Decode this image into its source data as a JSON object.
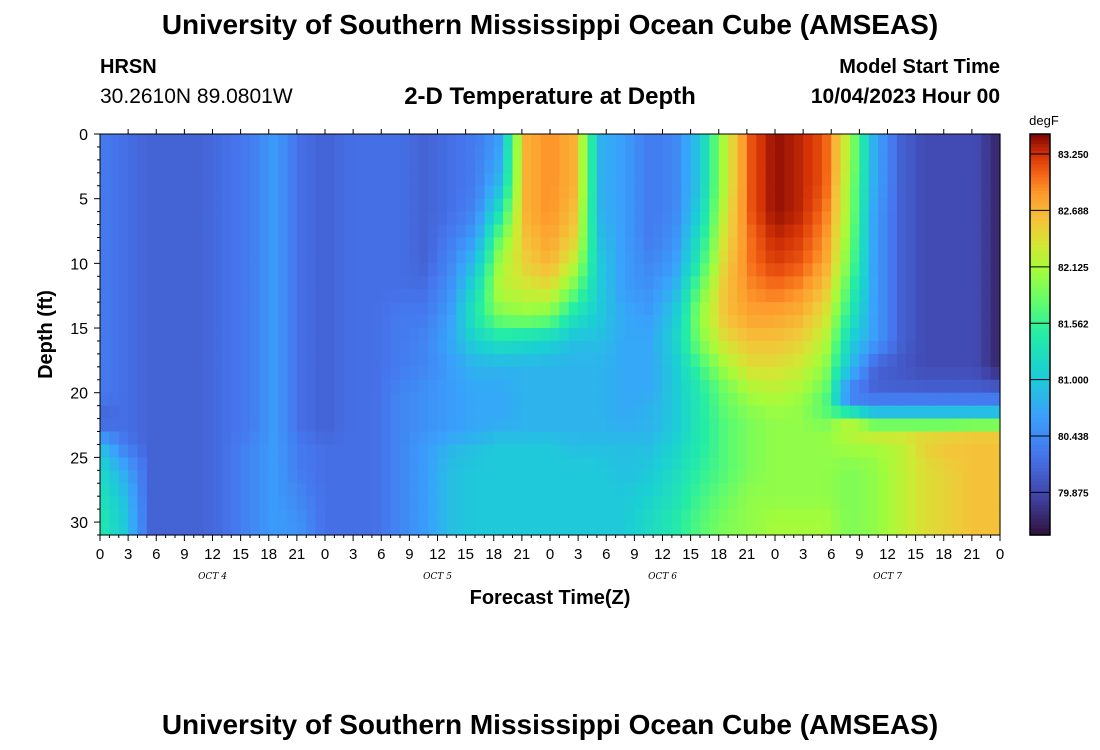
{
  "header": {
    "title": "University of Southern Mississippi Ocean Cube (AMSEAS)",
    "station": "HRSN",
    "coordinates": "30.2610N  89.0801W",
    "subtitle": "2-D Temperature at Depth",
    "start_label": "Model Start Time",
    "start_value": "10/04/2023 Hour 00"
  },
  "footer": {
    "title": "University of Southern Mississippi Ocean Cube (AMSEAS)"
  },
  "chart_data": {
    "type": "heatmap",
    "xlabel": "Forecast Time(Z)",
    "ylabel": "Depth (ft)",
    "x_tick_labels": [
      "0",
      "3",
      "6",
      "9",
      "12",
      "15",
      "18",
      "21",
      "0",
      "3",
      "6",
      "9",
      "12",
      "15",
      "18",
      "21",
      "0",
      "3",
      "6",
      "9",
      "12",
      "15",
      "18",
      "21",
      "0",
      "3",
      "6",
      "9",
      "12",
      "15",
      "18",
      "21",
      "0"
    ],
    "x_hours_range": [
      0,
      96
    ],
    "day_labels": [
      {
        "label": "OCT  4",
        "hour": 12
      },
      {
        "label": "OCT  5",
        "hour": 36
      },
      {
        "label": "OCT  6",
        "hour": 60
      },
      {
        "label": "OCT  7",
        "hour": 84
      }
    ],
    "y_ticks": [
      0,
      5,
      10,
      15,
      20,
      25,
      30
    ],
    "ylim": [
      0,
      31
    ],
    "y_inverted": true,
    "colorbar": {
      "unit": "degF",
      "tick_labels": [
        "83.250",
        "82.688",
        "82.125",
        "81.562",
        "81.000",
        "80.438",
        "79.875"
      ],
      "range": [
        79.45,
        83.45
      ]
    },
    "hours": [
      0,
      3,
      6,
      9,
      12,
      15,
      18,
      21,
      24,
      27,
      30,
      33,
      36,
      39,
      42,
      45,
      48,
      51,
      54,
      57,
      60,
      63,
      66,
      69,
      72,
      75,
      78,
      81,
      84,
      87,
      90,
      93,
      96
    ],
    "depths": [
      0,
      2,
      4,
      6,
      8,
      10,
      12,
      14,
      16,
      18,
      20,
      21,
      22,
      23,
      24,
      26,
      28,
      30,
      31
    ],
    "values": [
      [
        80.3,
        80.2,
        80.1,
        80.1,
        80.1,
        80.2,
        80.3,
        80.6,
        80.2,
        80.1,
        80.2,
        80.2,
        80.2,
        80.1,
        80.2,
        80.3,
        80.6,
        82.7,
        82.9,
        82.7,
        80.8,
        80.6,
        80.3,
        80.4,
        81.0,
        82.2,
        83.1,
        83.4,
        83.3,
        83.1,
        82.1,
        80.7,
        80.1,
        79.9,
        79.9,
        79.9,
        79.6
      ],
      [
        80.3,
        80.2,
        80.1,
        80.1,
        80.1,
        80.2,
        80.3,
        80.6,
        80.2,
        80.1,
        80.2,
        80.2,
        80.2,
        80.1,
        80.2,
        80.3,
        80.7,
        82.7,
        82.9,
        82.7,
        80.8,
        80.6,
        80.3,
        80.4,
        81.0,
        82.2,
        83.1,
        83.4,
        83.3,
        83.1,
        82.1,
        80.7,
        80.1,
        79.9,
        79.9,
        79.9,
        79.6
      ],
      [
        80.3,
        80.2,
        80.1,
        80.1,
        80.1,
        80.2,
        80.3,
        80.6,
        80.2,
        80.1,
        80.2,
        80.2,
        80.2,
        80.1,
        80.2,
        80.3,
        80.9,
        82.7,
        82.9,
        82.7,
        80.8,
        80.6,
        80.3,
        80.4,
        81.0,
        82.2,
        83.1,
        83.4,
        83.3,
        83.1,
        82.0,
        80.7,
        80.1,
        79.9,
        79.9,
        79.9,
        79.6
      ],
      [
        80.3,
        80.2,
        80.1,
        80.1,
        80.1,
        80.2,
        80.3,
        80.6,
        80.2,
        80.1,
        80.2,
        80.2,
        80.2,
        80.1,
        80.2,
        80.4,
        81.3,
        82.7,
        82.9,
        82.6,
        80.8,
        80.6,
        80.3,
        80.4,
        81.1,
        82.3,
        83.1,
        83.4,
        83.3,
        83.0,
        82.0,
        80.6,
        80.1,
        79.9,
        79.9,
        79.9,
        79.6
      ],
      [
        80.3,
        80.2,
        80.1,
        80.1,
        80.1,
        80.2,
        80.3,
        80.6,
        80.2,
        80.1,
        80.2,
        80.2,
        80.2,
        80.1,
        80.3,
        80.6,
        81.8,
        82.6,
        82.8,
        82.5,
        80.9,
        80.6,
        80.3,
        80.5,
        81.3,
        82.4,
        83.0,
        83.3,
        83.2,
        82.9,
        81.9,
        80.6,
        80.1,
        79.9,
        79.9,
        79.9,
        79.6
      ],
      [
        80.3,
        80.2,
        80.1,
        80.1,
        80.1,
        80.2,
        80.3,
        80.6,
        80.2,
        80.1,
        80.2,
        80.2,
        80.2,
        80.1,
        80.4,
        80.9,
        82.1,
        82.5,
        82.7,
        82.2,
        81.0,
        80.6,
        80.4,
        80.6,
        81.5,
        82.5,
        83.0,
        83.2,
        83.1,
        82.8,
        81.8,
        80.6,
        80.1,
        79.9,
        79.9,
        79.9,
        79.6
      ],
      [
        80.3,
        80.2,
        80.1,
        80.1,
        80.1,
        80.2,
        80.3,
        80.6,
        80.2,
        80.1,
        80.2,
        80.2,
        80.2,
        80.2,
        80.5,
        81.2,
        82.2,
        82.3,
        82.4,
        81.8,
        81.0,
        80.6,
        80.5,
        80.8,
        81.8,
        82.6,
        82.9,
        83.0,
        82.9,
        82.6,
        81.6,
        80.6,
        80.1,
        79.9,
        79.9,
        79.9,
        79.6
      ],
      [
        80.3,
        80.2,
        80.1,
        80.1,
        80.1,
        80.2,
        80.3,
        80.6,
        80.2,
        80.1,
        80.2,
        80.2,
        80.3,
        80.3,
        80.6,
        81.4,
        81.9,
        82.0,
        81.9,
        81.3,
        81.0,
        80.7,
        80.6,
        81.0,
        82.0,
        82.6,
        82.8,
        82.8,
        82.7,
        82.4,
        81.4,
        80.6,
        80.1,
        79.9,
        79.9,
        79.9,
        79.6
      ],
      [
        80.3,
        80.2,
        80.1,
        80.1,
        80.1,
        80.2,
        80.3,
        80.6,
        80.2,
        80.1,
        80.2,
        80.2,
        80.3,
        80.4,
        80.7,
        81.1,
        81.3,
        81.2,
        81.1,
        80.9,
        80.9,
        80.7,
        80.7,
        81.1,
        81.9,
        82.4,
        82.6,
        82.6,
        82.5,
        82.2,
        81.1,
        80.6,
        80.1,
        79.9,
        79.9,
        79.9,
        79.6
      ],
      [
        80.3,
        80.2,
        80.1,
        80.1,
        80.1,
        80.2,
        80.3,
        80.6,
        80.2,
        80.1,
        80.2,
        80.2,
        80.3,
        80.4,
        80.6,
        80.8,
        80.8,
        80.8,
        80.8,
        80.8,
        80.8,
        80.7,
        80.7,
        81.0,
        81.6,
        82.1,
        82.4,
        82.4,
        82.3,
        82.0,
        80.9,
        80.1,
        80.0,
        79.9,
        79.9,
        79.9,
        79.6
      ],
      [
        80.3,
        80.2,
        80.1,
        80.1,
        80.1,
        80.2,
        80.3,
        80.6,
        80.2,
        80.1,
        80.2,
        80.2,
        80.4,
        80.5,
        80.6,
        80.7,
        80.7,
        80.8,
        80.8,
        80.8,
        80.8,
        80.7,
        80.7,
        81.0,
        81.4,
        81.8,
        82.1,
        82.2,
        82.1,
        81.8,
        80.3,
        80.1,
        80.1,
        80.1,
        80.1,
        80.1,
        80.1
      ],
      [
        80.2,
        80.2,
        80.1,
        80.1,
        80.1,
        80.2,
        80.3,
        80.6,
        80.2,
        80.1,
        80.2,
        80.2,
        80.4,
        80.5,
        80.6,
        80.7,
        80.7,
        80.8,
        80.8,
        80.8,
        80.8,
        80.7,
        80.8,
        81.0,
        81.4,
        81.8,
        82.0,
        82.1,
        82.0,
        81.7,
        80.5,
        80.5,
        80.5,
        80.5,
        80.5,
        80.5,
        80.5
      ],
      [
        80.1,
        80.2,
        80.1,
        80.1,
        80.1,
        80.2,
        80.3,
        80.6,
        80.2,
        80.1,
        80.2,
        80.2,
        80.4,
        80.5,
        80.6,
        80.7,
        80.7,
        80.8,
        80.8,
        80.8,
        80.8,
        80.7,
        80.8,
        81.0,
        81.4,
        81.7,
        81.9,
        82.0,
        82.0,
        81.8,
        82.2,
        81.3,
        81.3,
        81.3,
        81.3,
        81.3,
        81.3
      ],
      [
        80.3,
        80.2,
        80.1,
        80.1,
        80.1,
        80.2,
        80.3,
        80.6,
        80.2,
        80.1,
        80.2,
        80.2,
        80.4,
        80.5,
        80.6,
        80.7,
        80.8,
        80.8,
        80.8,
        80.8,
        80.8,
        80.8,
        80.8,
        81.0,
        81.4,
        81.7,
        81.9,
        82.0,
        82.0,
        82.0,
        82.2,
        82.4,
        82.4,
        82.4,
        82.4,
        82.5,
        82.5
      ],
      [
        80.9,
        80.3,
        80.1,
        80.1,
        80.1,
        80.2,
        80.4,
        80.6,
        80.3,
        80.2,
        80.2,
        80.2,
        80.4,
        80.6,
        80.8,
        80.9,
        81.0,
        81.0,
        81.0,
        80.9,
        80.9,
        80.9,
        80.9,
        81.1,
        81.4,
        81.7,
        81.9,
        82.0,
        82.0,
        82.0,
        82.1,
        82.1,
        82.2,
        82.5,
        82.6,
        82.6,
        82.6
      ],
      [
        81.2,
        80.7,
        80.1,
        80.1,
        80.1,
        80.2,
        80.4,
        80.6,
        80.3,
        80.2,
        80.2,
        80.2,
        80.4,
        80.6,
        80.9,
        81.0,
        81.0,
        81.0,
        81.0,
        81.0,
        81.0,
        80.9,
        81.0,
        81.2,
        81.5,
        81.7,
        81.9,
        82.0,
        82.0,
        82.0,
        81.9,
        82.0,
        82.2,
        82.4,
        82.5,
        82.6,
        82.6
      ],
      [
        81.3,
        80.9,
        80.1,
        80.1,
        80.1,
        80.2,
        80.4,
        80.6,
        80.4,
        80.2,
        80.2,
        80.2,
        80.4,
        80.6,
        80.9,
        81.0,
        81.0,
        81.0,
        81.0,
        81.0,
        81.0,
        81.0,
        81.1,
        81.3,
        81.6,
        81.8,
        82.0,
        82.0,
        82.0,
        82.0,
        81.9,
        82.0,
        82.2,
        82.4,
        82.5,
        82.6,
        82.6
      ],
      [
        81.4,
        81.0,
        80.1,
        80.1,
        80.1,
        80.2,
        80.4,
        80.6,
        80.5,
        80.2,
        80.2,
        80.2,
        80.4,
        80.6,
        80.9,
        81.0,
        81.0,
        81.0,
        81.0,
        81.0,
        81.0,
        81.0,
        81.2,
        81.4,
        81.7,
        81.9,
        82.0,
        82.1,
        82.1,
        82.1,
        81.9,
        82.0,
        82.2,
        82.4,
        82.5,
        82.6,
        82.6
      ],
      [
        81.4,
        81.0,
        80.1,
        80.1,
        80.1,
        80.2,
        80.4,
        80.6,
        80.5,
        80.2,
        80.2,
        80.2,
        80.4,
        80.6,
        80.9,
        81.0,
        81.0,
        81.0,
        81.0,
        81.0,
        81.0,
        81.0,
        81.2,
        81.4,
        81.7,
        81.9,
        82.0,
        82.1,
        82.1,
        82.1,
        81.9,
        82.0,
        82.2,
        82.4,
        82.5,
        82.6,
        82.6
      ]
    ],
    "value_columns_note": "values rows correspond to depths; columns are 37 evenly spaced samples spanning hours 0-96"
  }
}
